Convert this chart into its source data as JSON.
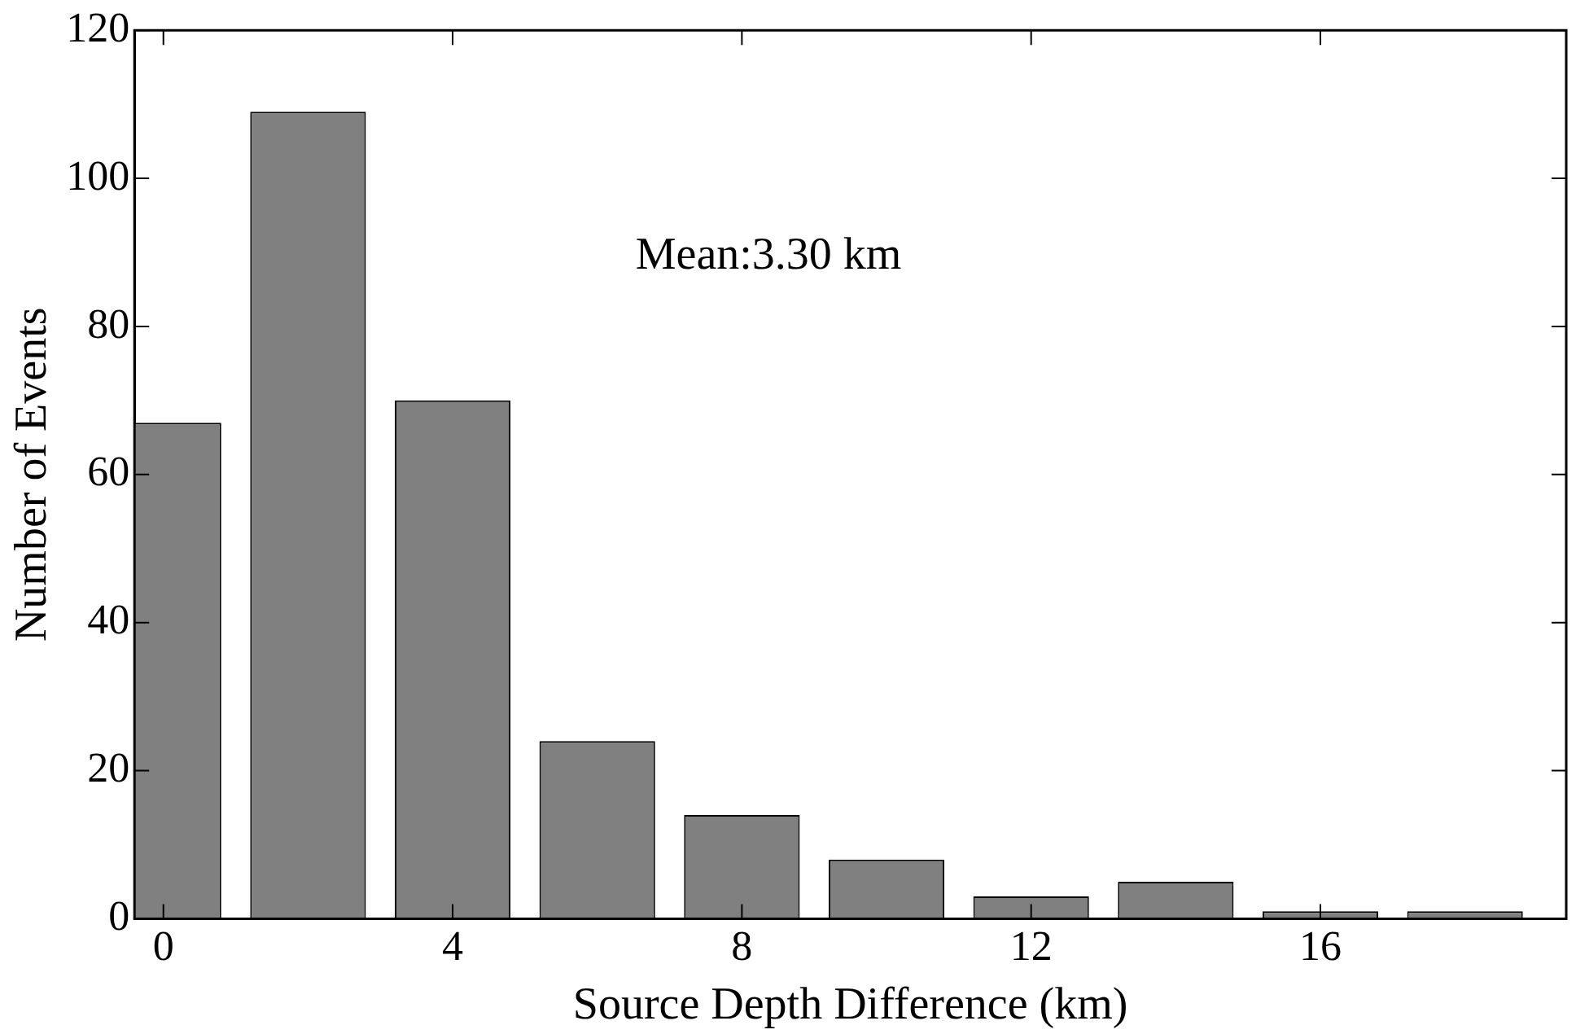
{
  "chart_data": {
    "type": "bar",
    "xlabel": "Source Depth Difference (km)",
    "ylabel": "Number of Events",
    "x": [
      0,
      2,
      4,
      6,
      8,
      10,
      12,
      14,
      16,
      18
    ],
    "values": [
      67,
      109,
      70,
      24,
      14,
      8,
      3,
      5,
      1,
      1
    ],
    "color": "#808080",
    "xlim": [
      -0.4,
      19.4
    ],
    "xticks": [
      0,
      4,
      8,
      12,
      16
    ],
    "ylim": [
      0,
      120
    ],
    "yticks": [
      0,
      20,
      40,
      60,
      80,
      100,
      120
    ],
    "grid": false,
    "legend": false,
    "annotations": [
      "Mean:3.30 km"
    ]
  }
}
